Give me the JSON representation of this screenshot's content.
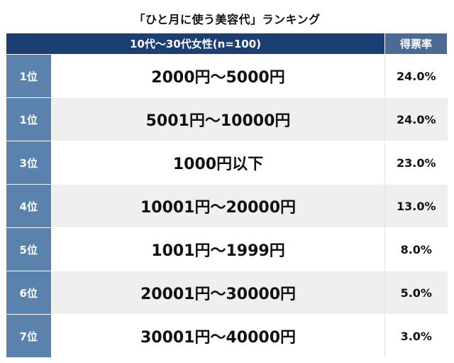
{
  "title": "「ひと月に使う美容代」ランキング",
  "chart_data": {
    "type": "table",
    "title": "「ひと月に使う美容代」ランキング",
    "headers": {
      "group": "10代〜30代女性(n=100)",
      "share": "得票率"
    },
    "rows": [
      {
        "rank": "1位",
        "range": "2000円〜5000円",
        "share": "24.0%",
        "value": 24.0
      },
      {
        "rank": "1位",
        "range": "5001円〜10000円",
        "share": "24.0%",
        "value": 24.0
      },
      {
        "rank": "3位",
        "range": "1000円以下",
        "share": "23.0%",
        "value": 23.0
      },
      {
        "rank": "4位",
        "range": "10001円〜20000円",
        "share": "13.0%",
        "value": 13.0
      },
      {
        "rank": "5位",
        "range": "1001円〜1999円",
        "share": "8.0%",
        "value": 8.0
      },
      {
        "rank": "6位",
        "range": "20001円〜30000円",
        "share": "5.0%",
        "value": 5.0
      },
      {
        "rank": "7位",
        "range": "30001円〜40000円",
        "share": "3.0%",
        "value": 3.0
      }
    ]
  }
}
